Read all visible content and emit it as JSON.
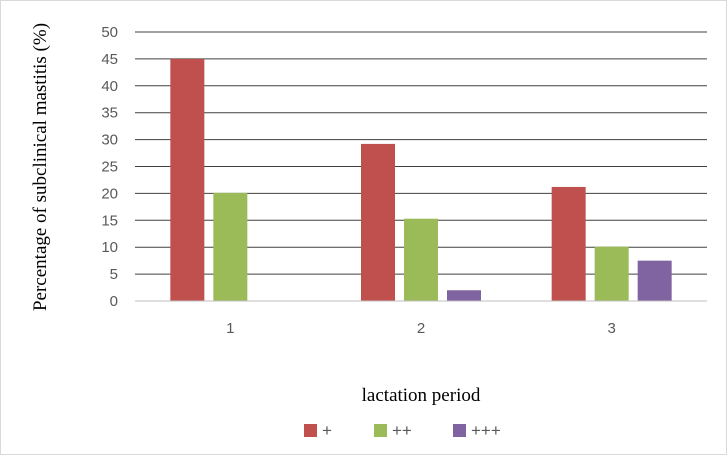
{
  "chart_data": {
    "type": "bar",
    "categories": [
      "1",
      "2",
      "3"
    ],
    "series": [
      {
        "name": "+",
        "values": [
          45,
          29.2,
          21.2
        ],
        "color": "#c0504d"
      },
      {
        "name": "++",
        "values": [
          20.1,
          15.3,
          10.1
        ],
        "color": "#9bbb59"
      },
      {
        "name": "+++",
        "values": [
          0,
          2,
          7.5
        ],
        "color": "#8064a2"
      }
    ],
    "title": "",
    "xlabel": "lactation period",
    "ylabel": "Percentage of subclinical mastitis  (%)",
    "ylim": [
      0,
      50
    ],
    "yticks": [
      0,
      5,
      10,
      15,
      20,
      25,
      30,
      35,
      40,
      45,
      50
    ],
    "grid": true,
    "legend_position": "bottom",
    "gridline_color": "#404040",
    "axis_line_color": "#bfbfbf"
  }
}
